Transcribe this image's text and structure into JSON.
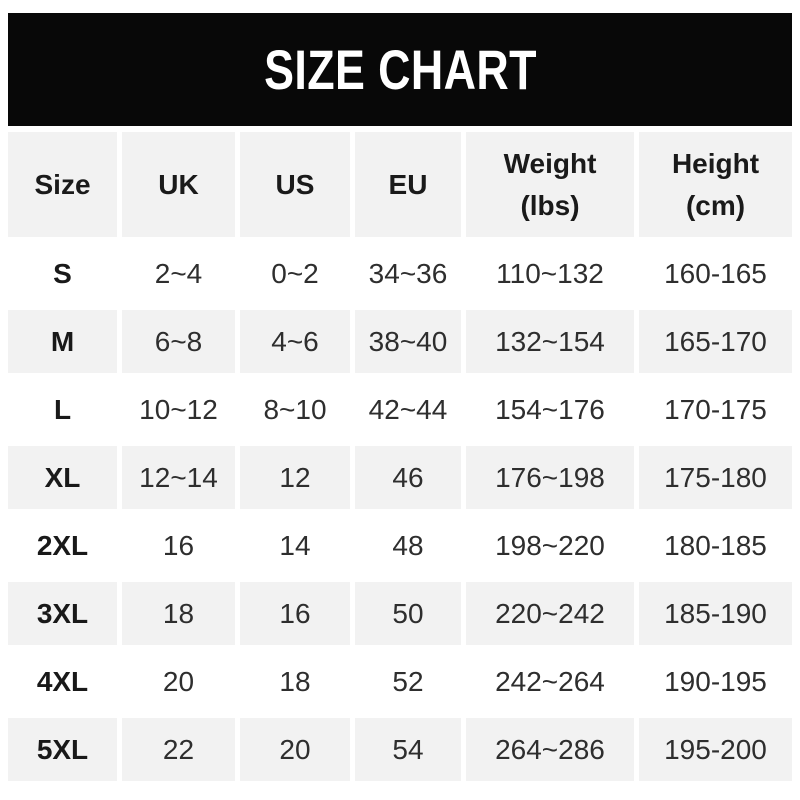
{
  "banner": {
    "title": "SIZE CHART"
  },
  "colors": {
    "banner_bg": "#080808",
    "banner_text": "#ffffff",
    "cell_alt_bg": "#f2f2f2",
    "cell_bg": "#ffffff",
    "header_text": "#1a1a1a",
    "cell_text": "#2e2e2e"
  },
  "chart_data": {
    "type": "table",
    "title": "SIZE CHART",
    "legend_position": "none",
    "columns": [
      {
        "line1": "Size",
        "line2": ""
      },
      {
        "line1": "UK",
        "line2": ""
      },
      {
        "line1": "US",
        "line2": ""
      },
      {
        "line1": "EU",
        "line2": ""
      },
      {
        "line1": "Weight",
        "line2": "(lbs)"
      },
      {
        "line1": "Height",
        "line2": "(cm)"
      }
    ],
    "rows": [
      {
        "size": "S",
        "uk": "2~4",
        "us": "0~2",
        "eu": "34~36",
        "weight_lbs": "110~132",
        "height_cm": "160-165"
      },
      {
        "size": "M",
        "uk": "6~8",
        "us": "4~6",
        "eu": "38~40",
        "weight_lbs": "132~154",
        "height_cm": "165-170"
      },
      {
        "size": "L",
        "uk": "10~12",
        "us": "8~10",
        "eu": "42~44",
        "weight_lbs": "154~176",
        "height_cm": "170-175"
      },
      {
        "size": "XL",
        "uk": "12~14",
        "us": "12",
        "eu": "46",
        "weight_lbs": "176~198",
        "height_cm": "175-180"
      },
      {
        "size": "2XL",
        "uk": "16",
        "us": "14",
        "eu": "48",
        "weight_lbs": "198~220",
        "height_cm": "180-185"
      },
      {
        "size": "3XL",
        "uk": "18",
        "us": "16",
        "eu": "50",
        "weight_lbs": "220~242",
        "height_cm": "185-190"
      },
      {
        "size": "4XL",
        "uk": "20",
        "us": "18",
        "eu": "52",
        "weight_lbs": "242~264",
        "height_cm": "190-195"
      },
      {
        "size": "5XL",
        "uk": "22",
        "us": "20",
        "eu": "54",
        "weight_lbs": "264~286",
        "height_cm": "195-200"
      }
    ]
  }
}
